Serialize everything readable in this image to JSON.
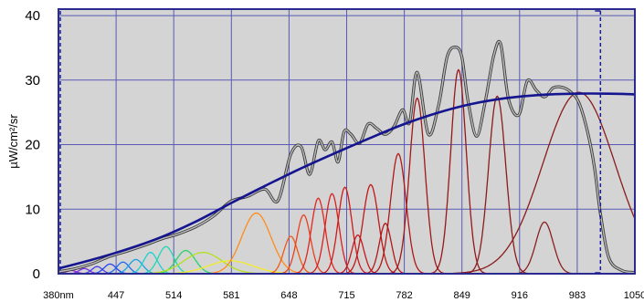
{
  "chart_data": {
    "type": "line",
    "title": "",
    "xlabel": "",
    "ylabel": "µW/cm²/sr",
    "xlim": [
      380,
      1050
    ],
    "ylim": [
      0,
      41
    ],
    "x_ticks": [
      380,
      447,
      514,
      581,
      648,
      715,
      782,
      849,
      916,
      983,
      1050
    ],
    "x_tick_labels": [
      "380nm",
      "447",
      "514",
      "581",
      "648",
      "715",
      "782",
      "849",
      "916",
      "983",
      "1050"
    ],
    "y_ticks": [
      0,
      10,
      20,
      30,
      40
    ],
    "y_tick_labels": [
      "0",
      "10",
      "20",
      "30",
      "40"
    ],
    "grid": true,
    "colors": {
      "plot_bg": "#d4d4d4",
      "grid": "#5a5ab4",
      "frame": "#2b2b8f",
      "target_curve": "#151590",
      "measured_curve": "#555555",
      "marker_line": "#1a1a9a"
    },
    "series": [
      {
        "role": "target",
        "color": "#151590",
        "x": [
          380,
          420,
          460,
          500,
          540,
          580,
          620,
          660,
          700,
          740,
          780,
          820,
          860,
          900,
          940,
          980,
          1020,
          1050
        ],
        "y": [
          0.8,
          2.2,
          3.8,
          5.7,
          8.1,
          10.9,
          13.6,
          16.2,
          18.6,
          20.9,
          23.1,
          24.9,
          26.3,
          27.2,
          27.7,
          27.9,
          27.9,
          27.8
        ]
      },
      {
        "role": "measured",
        "color": "#555555",
        "x": [
          380,
          400,
          420,
          440,
          460,
          480,
          500,
          520,
          540,
          560,
          580,
          600,
          620,
          635,
          650,
          662,
          672,
          682,
          690,
          698,
          705,
          712,
          720,
          730,
          740,
          750,
          760,
          770,
          780,
          788,
          797,
          810,
          822,
          832,
          842,
          849,
          856,
          866,
          876,
          886,
          894,
          903,
          915,
          925,
          935,
          945,
          955,
          965,
          975,
          985,
          995,
          1003,
          1010,
          1020,
          1035,
          1050
        ],
        "y": [
          0.3,
          0.8,
          1.6,
          2.7,
          3.5,
          4.4,
          5.4,
          6.2,
          7.3,
          8.9,
          11.2,
          12.0,
          13.1,
          11.3,
          18.5,
          19.7,
          15.4,
          20.6,
          19.2,
          20.4,
          17.3,
          22.0,
          21.6,
          20.2,
          23.2,
          22.5,
          21.6,
          22.8,
          25.4,
          23.4,
          31.2,
          21.6,
          26.2,
          33.7,
          35.1,
          33.5,
          26.8,
          21.3,
          26.6,
          33.8,
          35.6,
          27.1,
          24.6,
          29.9,
          28.5,
          27.4,
          28.8,
          28.9,
          28.2,
          26.5,
          22.0,
          16.5,
          9.3,
          2.4,
          0.5,
          0.2
        ]
      }
    ],
    "peaks": [
      {
        "center": 395,
        "height": 0.5,
        "width": 6,
        "color": "#9b30d9"
      },
      {
        "center": 410,
        "height": 0.8,
        "width": 6,
        "color": "#7a2ee0"
      },
      {
        "center": 425,
        "height": 1.1,
        "width": 6,
        "color": "#4b3fe8"
      },
      {
        "center": 440,
        "height": 1.5,
        "width": 7,
        "color": "#2244ee"
      },
      {
        "center": 455,
        "height": 1.8,
        "width": 7,
        "color": "#1e6cf0"
      },
      {
        "center": 470,
        "height": 2.2,
        "width": 8,
        "color": "#18a0e6"
      },
      {
        "center": 487,
        "height": 3.3,
        "width": 8,
        "color": "#1ed0d0"
      },
      {
        "center": 505,
        "height": 4.2,
        "width": 9,
        "color": "#20d8b0"
      },
      {
        "center": 528,
        "height": 3.6,
        "width": 11,
        "color": "#2ad26a"
      },
      {
        "center": 548,
        "height": 3.3,
        "width": 22,
        "color": "#b4e01e"
      },
      {
        "center": 580,
        "height": 2.0,
        "width": 26,
        "color": "#f4ec2a"
      },
      {
        "center": 610,
        "height": 9.4,
        "width": 17,
        "color": "#ff8c1a"
      },
      {
        "center": 650,
        "height": 5.8,
        "width": 8,
        "color": "#f05a18"
      },
      {
        "center": 665,
        "height": 9.1,
        "width": 8,
        "color": "#e84020"
      },
      {
        "center": 682,
        "height": 11.7,
        "width": 8,
        "color": "#e0281e"
      },
      {
        "center": 698,
        "height": 12.4,
        "width": 8,
        "color": "#d8201c"
      },
      {
        "center": 713,
        "height": 13.4,
        "width": 8,
        "color": "#d01a1a"
      },
      {
        "center": 728,
        "height": 6.0,
        "width": 7,
        "color": "#c8181a"
      },
      {
        "center": 743,
        "height": 13.8,
        "width": 9,
        "color": "#c01818"
      },
      {
        "center": 760,
        "height": 7.8,
        "width": 7,
        "color": "#b41818"
      },
      {
        "center": 775,
        "height": 18.6,
        "width": 9,
        "color": "#b01818"
      },
      {
        "center": 797,
        "height": 27.2,
        "width": 9,
        "color": "#a01818"
      },
      {
        "center": 845,
        "height": 31.6,
        "width": 9,
        "color": "#951818"
      },
      {
        "center": 890,
        "height": 27.5,
        "width": 10,
        "color": "#8a1c1c"
      },
      {
        "center": 945,
        "height": 8.0,
        "width": 10,
        "color": "#8a2020"
      },
      {
        "center": 985,
        "height": 28.1,
        "width": 42,
        "color": "#8a1c1c"
      }
    ],
    "marker_x": 1010
  }
}
